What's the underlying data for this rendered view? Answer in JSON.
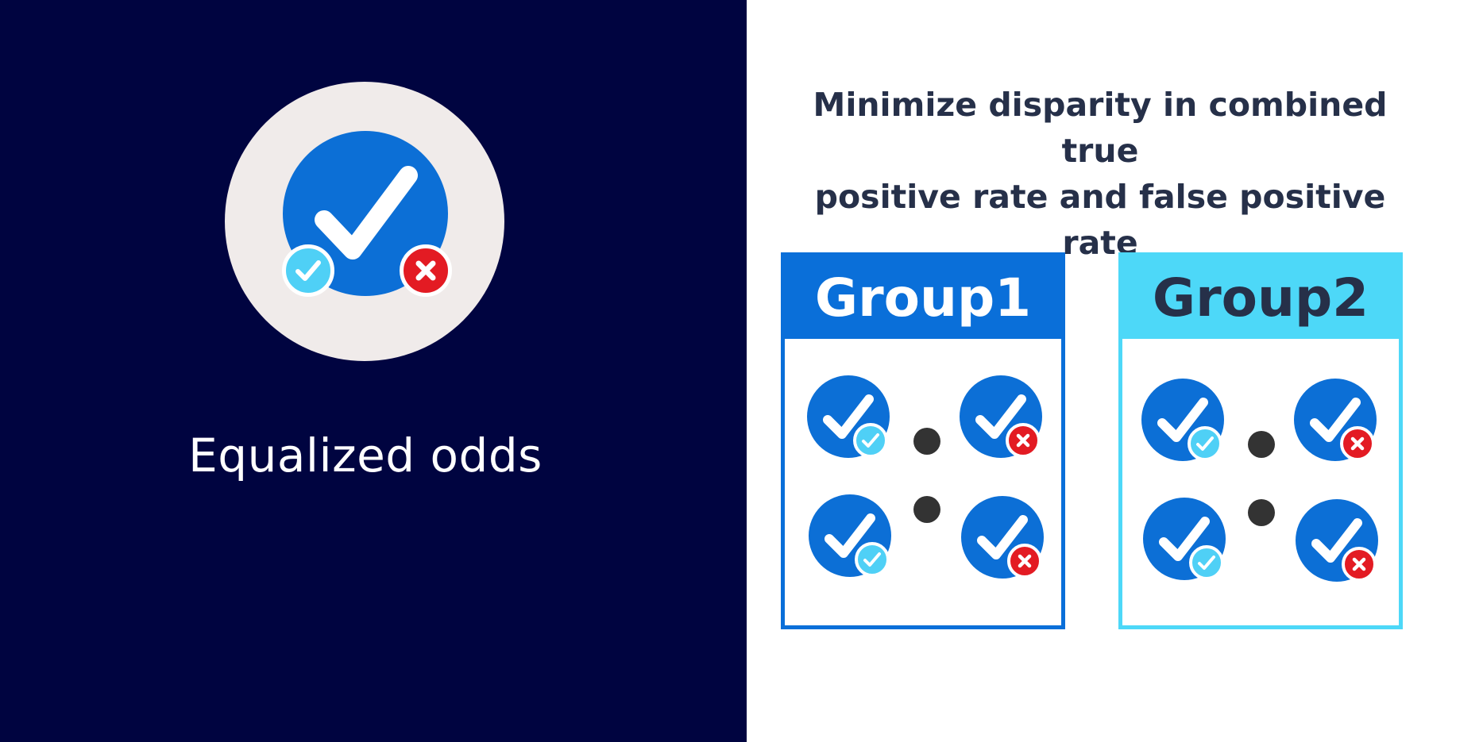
{
  "left": {
    "concept_label": "Equalized odds",
    "icons": [
      "check-circle-icon",
      "true-positive-badge-icon",
      "false-positive-badge-icon"
    ]
  },
  "right": {
    "headline_line1": "Minimize disparity in combined true",
    "headline_line2": "positive rate and false positive rate",
    "groups": [
      {
        "label": "Group1",
        "header_color": "#0a6fd9",
        "text_color": "#ffffff"
      },
      {
        "label": "Group2",
        "header_color": "#4dd8f8",
        "text_color": "#263049"
      }
    ]
  },
  "colors": {
    "left_background": "#000440",
    "check_blue": "#0c6fd6",
    "true_positive": "#4fd0f6",
    "false_positive": "#e31b23",
    "hero_ring": "#f0ebea"
  }
}
